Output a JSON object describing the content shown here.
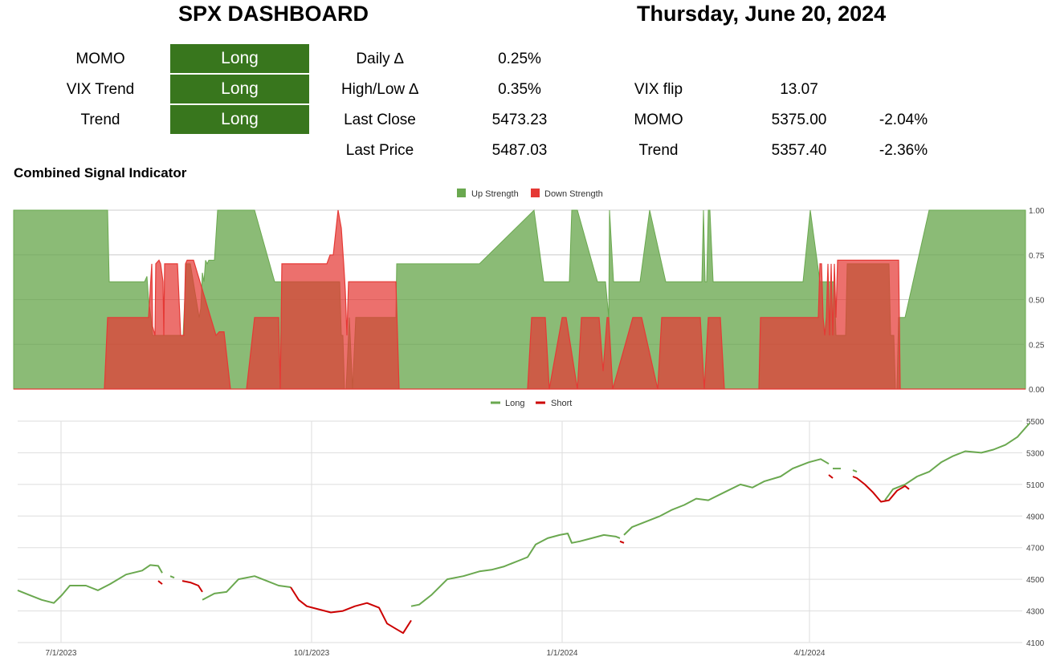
{
  "header": {
    "title": "SPX DASHBOARD",
    "date": "Thursday, June 20, 2024"
  },
  "signals": [
    {
      "label": "MOMO",
      "value": "Long"
    },
    {
      "label": "VIX Trend",
      "value": "Long"
    },
    {
      "label": "Trend",
      "value": "Long"
    }
  ],
  "metrics": [
    {
      "label": "Daily ∆",
      "value": "0.25%"
    },
    {
      "label": "High/Low ∆",
      "value": "0.35%"
    },
    {
      "label": "Last Close",
      "value": "5473.23"
    },
    {
      "label": "Last Price",
      "value": "5487.03"
    }
  ],
  "levels": [
    {
      "label": "VIX flip",
      "value": "13.07",
      "pct": ""
    },
    {
      "label": "MOMO",
      "value": "5375.00",
      "pct": "-2.04%"
    },
    {
      "label": "Trend",
      "value": "5357.40",
      "pct": "-2.36%"
    }
  ],
  "colors": {
    "badge_long": "#38761d",
    "up": "#6aa84f",
    "down": "#e53935",
    "short_line": "#cc0000"
  },
  "chart_data": [
    {
      "type": "area",
      "title": "Combined Signal Indicator",
      "ylim": [
        0,
        1
      ],
      "yticks": [
        "1.00",
        "0.75",
        "0.50",
        "0.25",
        "0.00"
      ],
      "legend_position": "top",
      "series": [
        {
          "name": "Up Strength",
          "x": [
            0,
            117,
            119,
            124,
            163,
            166,
            168,
            171,
            173,
            176,
            177,
            211,
            213,
            215,
            216,
            220,
            231,
            233,
            235,
            237,
            239,
            241,
            243,
            246,
            250,
            254,
            258,
            262,
            292,
            300,
            325,
            327,
            330,
            404,
            406,
            408,
            410,
            412,
            414,
            418,
            422,
            426,
            441,
            472,
            474,
            476,
            477,
            500,
            580,
            648,
            660,
            680,
            686,
            688,
            690,
            692,
            695,
            699,
            702,
            727,
            729,
            731,
            733,
            735,
            737,
            741,
            742,
            747,
            772,
            774,
            780,
            792,
            812,
            852,
            857,
            859,
            861,
            863,
            865,
            867,
            871,
            932,
            980,
            983,
            992,
            1004,
            1008,
            1010,
            1018,
            1020,
            1022,
            1024,
            1026,
            1028,
            1030,
            1034,
            1036,
            1038,
            1040,
            1042,
            1044,
            1046,
            1048,
            1050,
            1072,
            1078,
            1082,
            1084,
            1086,
            1088,
            1090,
            1092,
            1094,
            1096,
            1098,
            1100,
            1102,
            1110,
            1125,
            1140,
            1160,
            1165,
            1215,
            1260
          ],
          "values": [
            1,
            1,
            0.6,
            0.6,
            0.6,
            0.63,
            0.5,
            0.4,
            0.3,
            0.3,
            0.3,
            0.3,
            0.5,
            0.7,
            0.7,
            0.7,
            0.4,
            0.45,
            0.65,
            0.6,
            0.72,
            0.7,
            0.72,
            0.72,
            0.72,
            1,
            1,
            1,
            1,
            1,
            0.6,
            0.6,
            0.6,
            0.6,
            0.6,
            0.3,
            0.3,
            0,
            0,
            0.4,
            0,
            0.4,
            0.4,
            0.4,
            0.4,
            0.4,
            0.7,
            0.7,
            0.7,
            1,
            0.6,
            0.6,
            0.6,
            0.6,
            0.6,
            0.6,
            1,
            1,
            1,
            0.6,
            0.6,
            0.6,
            0.6,
            0.6,
            0.6,
            0.4,
            1,
            0.6,
            0.6,
            0.6,
            0.6,
            1,
            0.6,
            0.6,
            0.6,
            1,
            0.6,
            0.6,
            1,
            1,
            0.6,
            0.6,
            0.6,
            0.6,
            1,
            0.6,
            0.6,
            0.6,
            0.6,
            0.6,
            0.6,
            0.3,
            0.3,
            0.3,
            0.3,
            0.3,
            0.3,
            0.7,
            0.7,
            0.7,
            0.7,
            0.7,
            0.7,
            0.7,
            0.7,
            0.7,
            0.7,
            0.7,
            0.7,
            0.7,
            0.7,
            0.3,
            0.3,
            0.3,
            0,
            0,
            0.4,
            0.4,
            0.7,
            1,
            1,
            1,
            1,
            1
          ]
        },
        {
          "name": "Down Strength",
          "x": [
            0,
            113,
            117,
            163,
            168,
            172,
            173,
            176,
            177,
            181,
            183,
            186,
            187,
            188,
            204,
            208,
            212,
            214,
            216,
            224,
            252,
            256,
            258,
            262,
            270,
            290,
            300,
            330,
            332,
            334,
            362,
            380,
            390,
            394,
            396,
            398,
            404,
            408,
            411,
            413,
            415,
            417,
            419,
            421,
            423,
            425,
            427,
            429,
            432,
            435,
            440,
            474,
            476,
            480,
            640,
            645,
            662,
            667,
            683,
            688,
            702,
            707,
            727,
            729,
            734,
            739,
            741,
            746,
            771,
            778,
            782,
            802,
            807,
            838,
            848,
            855,
            860,
            865,
            880,
            885,
            928,
            930,
            937,
            980,
            984,
            990,
            995,
            998,
            1000,
            1002,
            1004,
            1006,
            1008,
            1010,
            1012,
            1014,
            1016,
            1018,
            1020,
            1022,
            1024,
            1026,
            1028,
            1030,
            1032,
            1034,
            1036,
            1038,
            1040,
            1042,
            1044,
            1046,
            1048,
            1050,
            1052,
            1054,
            1056,
            1058,
            1060,
            1062,
            1064,
            1066,
            1068,
            1070,
            1072,
            1074,
            1076,
            1078,
            1080,
            1082,
            1084,
            1086,
            1088,
            1090,
            1092,
            1094,
            1096,
            1098,
            1100,
            1102,
            1104,
            1110,
            1260
          ],
          "values": [
            0,
            0,
            0.4,
            0.4,
            0.4,
            0.7,
            0.35,
            0.3,
            0.7,
            0.72,
            0.7,
            0.6,
            0.3,
            0.7,
            0.7,
            0.3,
            0.3,
            0.7,
            0.72,
            0.72,
            0.3,
            0.32,
            0.32,
            0.32,
            0,
            0,
            0.4,
            0.4,
            0,
            0.7,
            0.7,
            0.7,
            0.7,
            0.75,
            0.75,
            0.75,
            1,
            0.9,
            0.7,
            0.55,
            0.3,
            0.6,
            0.6,
            0.6,
            0.6,
            0.6,
            0.6,
            0.6,
            0.6,
            0.6,
            0.6,
            0.6,
            0.6,
            0,
            0,
            0.4,
            0.4,
            0,
            0.4,
            0.4,
            0,
            0.4,
            0.4,
            0.4,
            0.1,
            0.4,
            0.4,
            0,
            0.4,
            0.4,
            0.4,
            0,
            0.4,
            0.4,
            0.4,
            0.4,
            0,
            0.4,
            0.4,
            0,
            0,
            0.4,
            0.4,
            0.4,
            0.4,
            0.4,
            0.4,
            0.4,
            0.4,
            0.4,
            0.7,
            0.7,
            0.4,
            0.3,
            0.4,
            0.7,
            0.3,
            0.7,
            0.3,
            0.7,
            0.4,
            0.72,
            0.72,
            0.72,
            0.72,
            0.72,
            0.72,
            0.72,
            0.72,
            0.72,
            0.72,
            0.72,
            0.72,
            0.72,
            0.72,
            0.72,
            0.72,
            0.72,
            0.72,
            0.72,
            0.72,
            0.72,
            0.72,
            0.72,
            0.72,
            0.72,
            0.72,
            0.72,
            0.72,
            0.72,
            0.72,
            0.72,
            0.72,
            0.72,
            0.72,
            0.72,
            0.72,
            0.72,
            0.72,
            0.72,
            0,
            0,
            0
          ]
        }
      ]
    },
    {
      "type": "line",
      "title": "",
      "xlabels": [
        "7/1/2023",
        "10/1/2023",
        "1/1/2024",
        "4/1/2024"
      ],
      "ylim": [
        4100,
        5500
      ],
      "yticks": [
        "5500",
        "5300",
        "5100",
        "4900",
        "4700",
        "4500",
        "4300",
        "4100"
      ],
      "legend_position": "top",
      "series": [
        {
          "name": "Long",
          "segments": [
            [
              [
                0,
                4430
              ],
              [
                15,
                4400
              ],
              [
                30,
                4370
              ],
              [
                45,
                4350
              ],
              [
                55,
                4400
              ],
              [
                65,
                4460
              ],
              [
                85,
                4460
              ],
              [
                100,
                4430
              ],
              [
                115,
                4470
              ],
              [
                135,
                4530
              ],
              [
                155,
                4555
              ],
              [
                165,
                4590
              ],
              [
                175,
                4585
              ],
              [
                180,
                4540
              ]
            ],
            [
              [
                190,
                4520
              ],
              [
                195,
                4510
              ]
            ],
            [
              [
                230,
                4370
              ],
              [
                245,
                4410
              ],
              [
                260,
                4420
              ],
              [
                275,
                4500
              ],
              [
                295,
                4520
              ],
              [
                310,
                4490
              ],
              [
                325,
                4460
              ],
              [
                340,
                4450
              ]
            ],
            [
              [
                490,
                4330
              ],
              [
                500,
                4340
              ],
              [
                515,
                4400
              ],
              [
                535,
                4500
              ],
              [
                555,
                4520
              ],
              [
                575,
                4550
              ],
              [
                590,
                4560
              ],
              [
                605,
                4580
              ],
              [
                625,
                4620
              ],
              [
                635,
                4640
              ],
              [
                645,
                4720
              ],
              [
                660,
                4760
              ],
              [
                675,
                4780
              ],
              [
                685,
                4790
              ],
              [
                690,
                4730
              ],
              [
                700,
                4740
              ],
              [
                715,
                4760
              ],
              [
                730,
                4780
              ],
              [
                745,
                4770
              ],
              [
                750,
                4760
              ]
            ],
            [
              [
                755,
                4780
              ],
              [
                765,
                4830
              ],
              [
                780,
                4860
              ],
              [
                800,
                4900
              ],
              [
                815,
                4940
              ],
              [
                830,
                4970
              ],
              [
                845,
                5010
              ],
              [
                860,
                5000
              ],
              [
                880,
                5050
              ],
              [
                900,
                5100
              ],
              [
                915,
                5080
              ],
              [
                930,
                5120
              ],
              [
                950,
                5150
              ],
              [
                965,
                5200
              ],
              [
                975,
                5220
              ],
              [
                985,
                5240
              ],
              [
                1000,
                5260
              ],
              [
                1010,
                5230
              ]
            ],
            [
              [
                1015,
                5200
              ],
              [
                1025,
                5200
              ]
            ],
            [
              [
                1040,
                5190
              ],
              [
                1045,
                5180
              ]
            ],
            [
              [
                1080,
                5000
              ],
              [
                1090,
                5070
              ],
              [
                1105,
                5100
              ],
              [
                1120,
                5150
              ],
              [
                1135,
                5180
              ],
              [
                1150,
                5240
              ],
              [
                1165,
                5280
              ],
              [
                1180,
                5310
              ],
              [
                1200,
                5300
              ],
              [
                1215,
                5320
              ],
              [
                1230,
                5350
              ],
              [
                1245,
                5400
              ],
              [
                1260,
                5487
              ]
            ]
          ]
        },
        {
          "name": "Short",
          "segments": [
            [
              [
                175,
                4490
              ],
              [
                180,
                4470
              ]
            ],
            [
              [
                205,
                4490
              ],
              [
                215,
                4480
              ],
              [
                225,
                4460
              ],
              [
                230,
                4420
              ]
            ],
            [
              [
                340,
                4450
              ],
              [
                350,
                4370
              ],
              [
                360,
                4330
              ],
              [
                375,
                4310
              ],
              [
                390,
                4290
              ],
              [
                405,
                4300
              ],
              [
                420,
                4330
              ],
              [
                435,
                4350
              ],
              [
                450,
                4320
              ],
              [
                460,
                4220
              ],
              [
                470,
                4190
              ],
              [
                480,
                4160
              ],
              [
                490,
                4240
              ]
            ],
            [
              [
                750,
                4740
              ],
              [
                755,
                4730
              ]
            ],
            [
              [
                1010,
                5160
              ],
              [
                1015,
                5140
              ]
            ],
            [
              [
                1040,
                5150
              ],
              [
                1045,
                5140
              ],
              [
                1055,
                5100
              ],
              [
                1065,
                5050
              ],
              [
                1075,
                4990
              ],
              [
                1085,
                5000
              ],
              [
                1095,
                5060
              ],
              [
                1105,
                5090
              ],
              [
                1110,
                5070
              ]
            ]
          ]
        }
      ]
    }
  ]
}
